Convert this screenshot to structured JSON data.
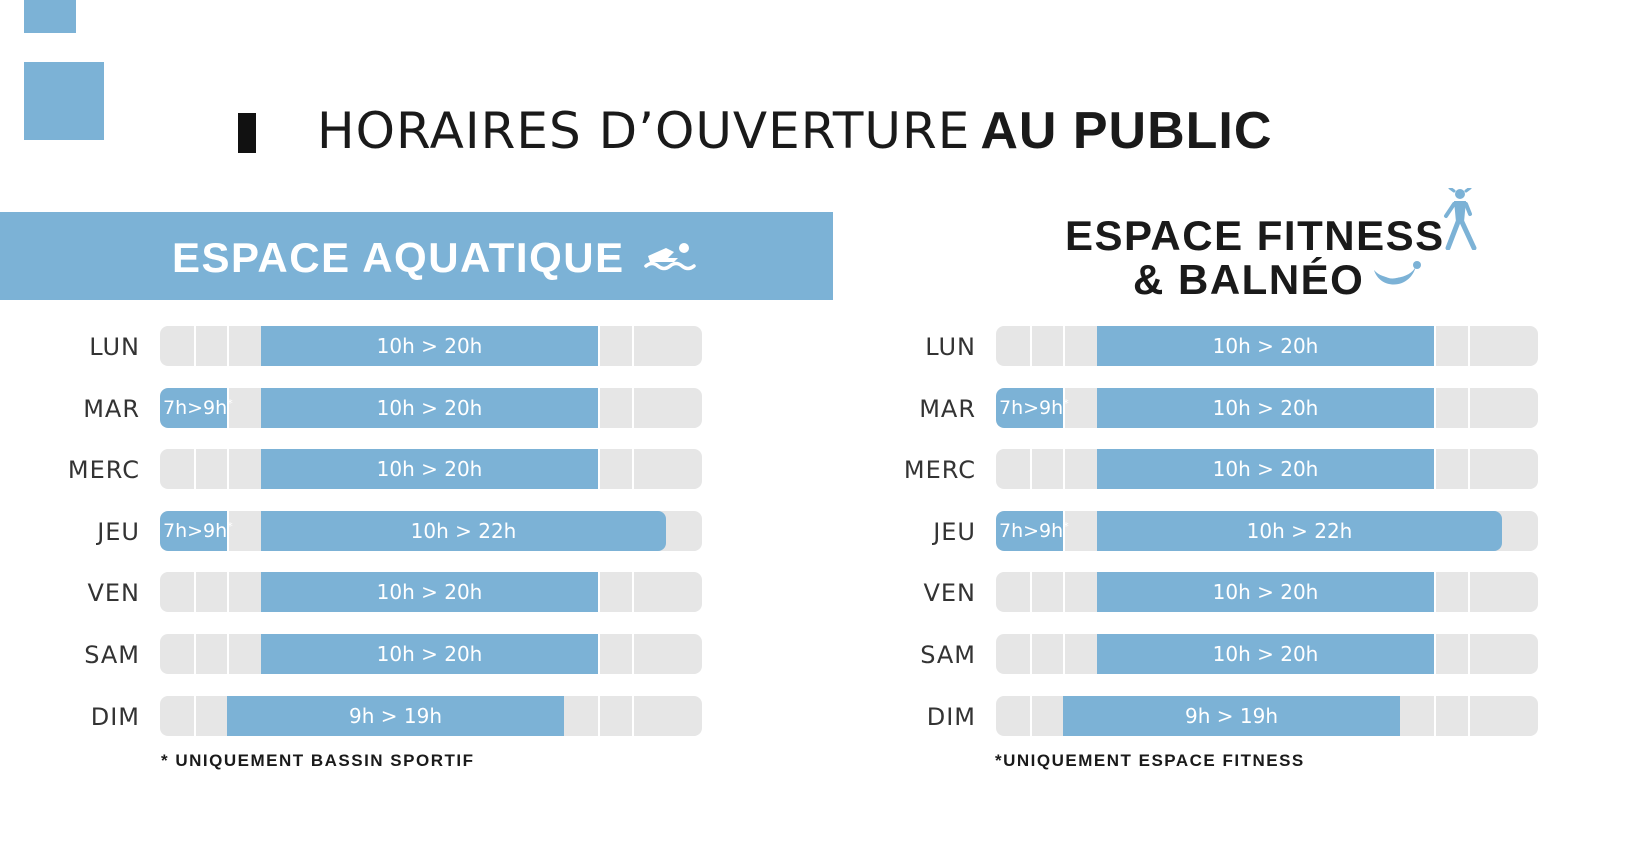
{
  "header": {
    "title_light": "HORAIRES D’OUVERTURE",
    "title_bold": "AU PUBLIC"
  },
  "colors": {
    "accent": "#7cb2d6",
    "track": "#e6e6e6",
    "dark": "#111111"
  },
  "sections": [
    {
      "id": "aqua",
      "title": "ESPACE AQUATIQUE",
      "icon": "swimmer-icon",
      "note": "* UNIQUEMENT BASSIN SPORTIF",
      "rows": [
        {
          "day": "LUN",
          "main": "10h > 20h",
          "early": ""
        },
        {
          "day": "MAR",
          "main": "10h > 20h",
          "early": "7h>9h",
          "early_mark": "*"
        },
        {
          "day": "MERC",
          "main": "10h > 20h",
          "early": ""
        },
        {
          "day": "JEU",
          "main": "10h > 22h",
          "early": "7h>9h",
          "early_mark": "*"
        },
        {
          "day": "VEN",
          "main": "10h > 20h",
          "early": ""
        },
        {
          "day": "SAM",
          "main": "10h > 20h",
          "early": ""
        },
        {
          "day": "DIM",
          "main": "9h > 19h",
          "early": ""
        }
      ]
    },
    {
      "id": "fitness",
      "title_line1": "ESPACE FITNESS",
      "title_line2": "& BALNÉO",
      "icon": "fitness-person-icon",
      "icon2": "balneo-wave-icon",
      "note": "*UNIQUEMENT ESPACE FITNESS",
      "rows": [
        {
          "day": "LUN",
          "main": "10h > 20h",
          "early": ""
        },
        {
          "day": "MAR",
          "main": "10h > 20h",
          "early": "7h>9h",
          "early_mark": "*"
        },
        {
          "day": "MERC",
          "main": "10h > 20h",
          "early": ""
        },
        {
          "day": "JEU",
          "main": "10h > 22h",
          "early": "7h>9h",
          "early_mark": "*"
        },
        {
          "day": "VEN",
          "main": "10h > 20h",
          "early": ""
        },
        {
          "day": "SAM",
          "main": "10h > 20h",
          "early": ""
        },
        {
          "day": "DIM",
          "main": "9h > 19h",
          "early": ""
        }
      ]
    }
  ]
}
